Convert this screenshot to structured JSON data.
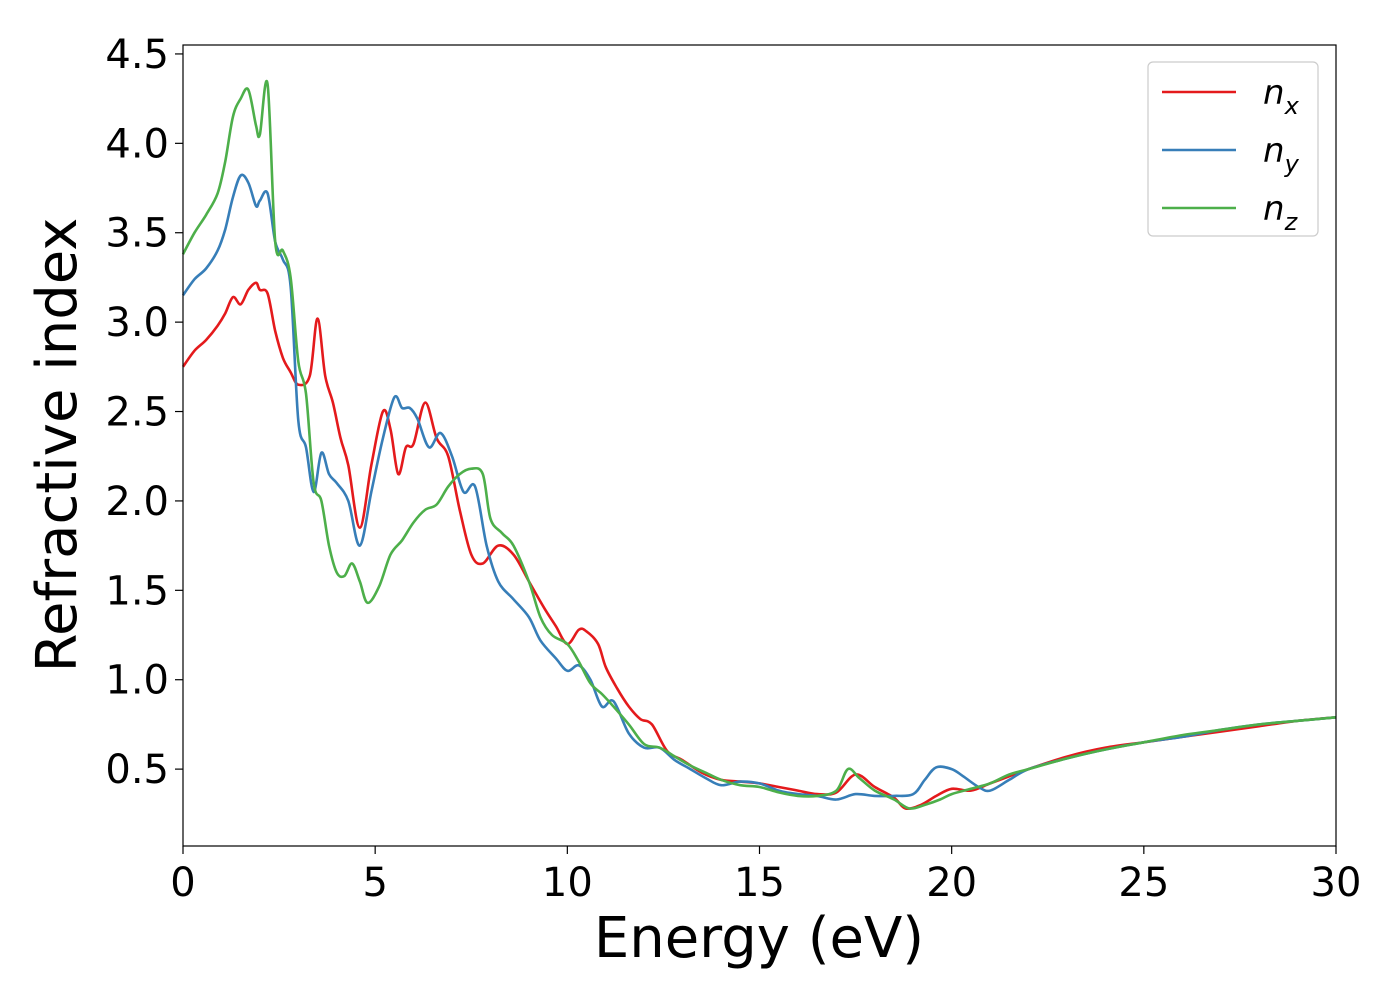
{
  "chart_data": {
    "type": "line",
    "title": "",
    "xlabel": "Energy (eV)",
    "ylabel": "Refractive index",
    "xlim": [
      0,
      30
    ],
    "ylim": [
      0.07,
      4.55
    ],
    "xticks": [
      0,
      5,
      10,
      15,
      20,
      25,
      30
    ],
    "xtick_labels": [
      "0",
      "5",
      "10",
      "15",
      "20",
      "25",
      "30"
    ],
    "yticks": [
      0.5,
      1.0,
      1.5,
      2.0,
      2.5,
      3.0,
      3.5,
      4.0,
      4.5
    ],
    "ytick_labels": [
      "0.5",
      "1.0",
      "1.5",
      "2.0",
      "2.5",
      "3.0",
      "3.5",
      "4.0",
      "4.5"
    ],
    "grid": false,
    "legend_position": "top-right",
    "series": [
      {
        "name": "n",
        "subscript": "x",
        "color": "#e41a1c",
        "x": [
          0,
          0.3,
          0.6,
          0.9,
          1.1,
          1.3,
          1.5,
          1.7,
          1.9,
          2.0,
          2.2,
          2.4,
          2.6,
          2.8,
          3.0,
          3.3,
          3.5,
          3.7,
          3.9,
          4.1,
          4.3,
          4.6,
          4.9,
          5.2,
          5.4,
          5.6,
          5.8,
          6.0,
          6.3,
          6.6,
          6.9,
          7.2,
          7.5,
          7.8,
          8.2,
          8.6,
          9.0,
          9.4,
          9.7,
          10.0,
          10.3,
          10.5,
          10.8,
          11.0,
          11.3,
          11.6,
          11.9,
          12.2,
          12.6,
          13.0,
          13.5,
          14.0,
          14.5,
          15.0,
          15.5,
          16.0,
          16.5,
          17.0,
          17.5,
          18.0,
          18.5,
          18.8,
          19.2,
          19.6,
          20.0,
          20.5,
          21.0,
          21.5,
          22.0,
          23.0,
          24.0,
          25.0,
          26.0,
          27.0,
          28.0,
          29.0,
          30.0
        ],
        "values": [
          2.75,
          2.84,
          2.9,
          2.98,
          3.05,
          3.14,
          3.1,
          3.18,
          3.22,
          3.18,
          3.16,
          2.95,
          2.8,
          2.72,
          2.65,
          2.7,
          3.02,
          2.7,
          2.55,
          2.35,
          2.2,
          1.85,
          2.2,
          2.5,
          2.4,
          2.15,
          2.3,
          2.32,
          2.55,
          2.35,
          2.25,
          1.95,
          1.7,
          1.65,
          1.75,
          1.7,
          1.55,
          1.4,
          1.3,
          1.2,
          1.28,
          1.27,
          1.2,
          1.07,
          0.95,
          0.85,
          0.78,
          0.75,
          0.6,
          0.55,
          0.48,
          0.44,
          0.43,
          0.42,
          0.4,
          0.38,
          0.36,
          0.37,
          0.47,
          0.4,
          0.34,
          0.28,
          0.3,
          0.35,
          0.39,
          0.38,
          0.42,
          0.46,
          0.5,
          0.57,
          0.62,
          0.65,
          0.68,
          0.71,
          0.74,
          0.77,
          0.79
        ]
      },
      {
        "name": "n",
        "subscript": "y",
        "color": "#377eb8",
        "x": [
          0,
          0.3,
          0.6,
          0.9,
          1.1,
          1.3,
          1.5,
          1.7,
          1.9,
          2.0,
          2.2,
          2.4,
          2.6,
          2.8,
          3.0,
          3.2,
          3.4,
          3.6,
          3.8,
          4.0,
          4.3,
          4.6,
          4.9,
          5.2,
          5.5,
          5.7,
          5.9,
          6.1,
          6.4,
          6.7,
          7.0,
          7.3,
          7.6,
          7.9,
          8.2,
          8.6,
          9.0,
          9.3,
          9.7,
          10.0,
          10.3,
          10.6,
          10.9,
          11.2,
          11.6,
          12.0,
          12.4,
          12.8,
          13.2,
          13.6,
          14.0,
          14.5,
          15.0,
          15.5,
          16.0,
          16.5,
          17.0,
          17.5,
          18.0,
          18.5,
          19.0,
          19.3,
          19.6,
          20.0,
          20.3,
          20.7,
          21.0,
          21.5,
          22.0,
          23.0,
          24.0,
          25.0,
          26.0,
          27.0,
          28.0,
          29.0,
          30.0
        ],
        "values": [
          3.15,
          3.24,
          3.3,
          3.4,
          3.52,
          3.7,
          3.82,
          3.78,
          3.65,
          3.68,
          3.72,
          3.45,
          3.35,
          3.2,
          2.45,
          2.3,
          2.05,
          2.27,
          2.15,
          2.1,
          2.0,
          1.75,
          2.05,
          2.35,
          2.58,
          2.52,
          2.52,
          2.46,
          2.3,
          2.38,
          2.25,
          2.05,
          2.08,
          1.75,
          1.55,
          1.45,
          1.35,
          1.22,
          1.12,
          1.05,
          1.08,
          1.0,
          0.85,
          0.88,
          0.7,
          0.62,
          0.62,
          0.55,
          0.5,
          0.45,
          0.41,
          0.43,
          0.42,
          0.38,
          0.36,
          0.35,
          0.33,
          0.36,
          0.35,
          0.35,
          0.36,
          0.44,
          0.51,
          0.5,
          0.46,
          0.4,
          0.38,
          0.44,
          0.5,
          0.56,
          0.61,
          0.65,
          0.68,
          0.72,
          0.75,
          0.77,
          0.79
        ]
      },
      {
        "name": "n",
        "subscript": "z",
        "color": "#4daf4a",
        "x": [
          0,
          0.3,
          0.6,
          0.9,
          1.1,
          1.3,
          1.5,
          1.7,
          1.9,
          2.0,
          2.2,
          2.4,
          2.6,
          2.8,
          3.0,
          3.2,
          3.4,
          3.6,
          3.8,
          4.0,
          4.2,
          4.4,
          4.6,
          4.8,
          5.1,
          5.4,
          5.7,
          6.0,
          6.3,
          6.6,
          6.9,
          7.2,
          7.5,
          7.8,
          8.0,
          8.3,
          8.6,
          9.0,
          9.3,
          9.6,
          10.0,
          10.3,
          10.6,
          10.9,
          11.2,
          11.6,
          12.0,
          12.4,
          12.8,
          13.2,
          13.6,
          14.0,
          14.5,
          15.0,
          15.5,
          16.0,
          16.5,
          17.0,
          17.3,
          17.6,
          18.0,
          18.5,
          18.9,
          19.3,
          19.7,
          20.0,
          20.5,
          21.0,
          21.5,
          22.0,
          23.0,
          24.0,
          25.0,
          26.0,
          27.0,
          28.0,
          29.0,
          30.0
        ],
        "values": [
          3.38,
          3.5,
          3.6,
          3.72,
          3.9,
          4.15,
          4.25,
          4.3,
          4.1,
          4.05,
          4.33,
          3.45,
          3.4,
          3.25,
          2.78,
          2.6,
          2.1,
          2.0,
          1.75,
          1.6,
          1.58,
          1.65,
          1.55,
          1.43,
          1.52,
          1.7,
          1.78,
          1.88,
          1.95,
          1.98,
          2.08,
          2.15,
          2.18,
          2.15,
          1.9,
          1.82,
          1.75,
          1.55,
          1.35,
          1.25,
          1.2,
          1.1,
          0.98,
          0.92,
          0.85,
          0.75,
          0.64,
          0.62,
          0.57,
          0.52,
          0.48,
          0.44,
          0.41,
          0.4,
          0.37,
          0.35,
          0.35,
          0.38,
          0.5,
          0.45,
          0.38,
          0.33,
          0.28,
          0.3,
          0.33,
          0.36,
          0.39,
          0.42,
          0.47,
          0.5,
          0.56,
          0.61,
          0.65,
          0.69,
          0.72,
          0.75,
          0.77,
          0.79
        ]
      }
    ]
  }
}
